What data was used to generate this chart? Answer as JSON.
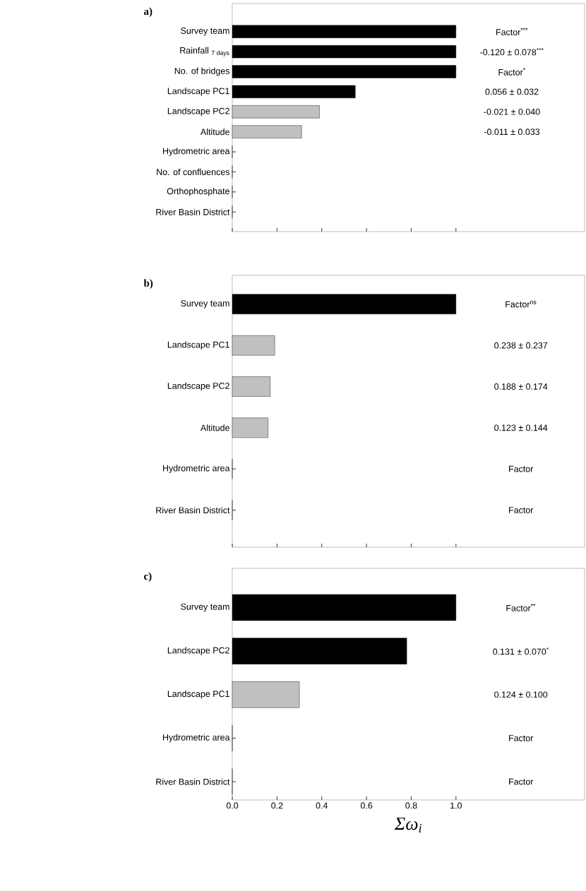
{
  "chart_data": [
    {
      "type": "bar",
      "orientation": "horizontal",
      "title": "a)",
      "categories": [
        "Survey team",
        "Rainfall $_{7 days}$",
        "No. of bridges",
        "Landscape PC1",
        "Landscape PC2",
        "Altitude",
        "Hydrometric area",
        "No. of confluences",
        "Orthophosphate",
        "River Basin District"
      ],
      "values": [
        1.0,
        1.0,
        1.0,
        0.55,
        0.39,
        0.31,
        0,
        0,
        0,
        0
      ],
      "colors": [
        "#000000",
        "#000000",
        "#000000",
        "#000000",
        "#c0c0c0",
        "#c0c0c0",
        "#c0c0c0",
        "#c0c0c0",
        "#c0c0c0",
        "#c0c0c0"
      ],
      "xlim": [
        0,
        1.575
      ],
      "xticks": [
        {
          "value": 0,
          "label": null
        },
        {
          "value": 0.2,
          "label": null
        },
        {
          "value": 0.4,
          "label": null
        },
        {
          "value": 0.6,
          "label": null
        },
        {
          "value": 0.8,
          "label": null
        },
        {
          "value": 1,
          "label": null
        }
      ],
      "tick_labels": "y",
      "annotations": [
        "Factor$^{***}$",
        "-0.120 ± 0.078$^{***}$",
        "Factor$^{*}$",
        "0.056 ± 0.032",
        "-0.021 ± 0.040",
        "-0.011 ± 0.033"
      ]
    },
    {
      "type": "bar",
      "orientation": "horizontal",
      "title": "b)",
      "categories": [
        "Survey team",
        "Landscape PC1",
        "Landscape PC2",
        "Altitude",
        "Hydrometric area",
        "River Basin District"
      ],
      "values": [
        1.0,
        0.19,
        0.17,
        0.16,
        0,
        0
      ],
      "colors": [
        "#000000",
        "#c0c0c0",
        "#c0c0c0",
        "#c0c0c0",
        "#c0c0c0",
        "#c0c0c0"
      ],
      "xlim": [
        0,
        1.575
      ],
      "xticks": [
        {
          "value": 0,
          "label": null
        },
        {
          "value": 0.2,
          "label": null
        },
        {
          "value": 0.4,
          "label": null
        },
        {
          "value": 0.6,
          "label": null
        },
        {
          "value": 0.8,
          "label": null
        },
        {
          "value": 1,
          "label": null
        }
      ],
      "tick_labels": "y",
      "annotations": [
        "Factor$^{ns}$",
        "0.238 ± 0.237",
        "0.188 ± 0.174",
        "0.123 ± 0.144",
        "Factor",
        "Factor"
      ]
    },
    {
      "type": "bar",
      "orientation": "horizontal",
      "title": "c)",
      "xlabel": "Σω$_{i}$",
      "categories": [
        "Survey team",
        "Landscape PC2",
        "Landscape PC1",
        "Hydrometric area",
        "River Basin District"
      ],
      "values": [
        1.0,
        0.78,
        0.3,
        0,
        0
      ],
      "colors": [
        "#000000",
        "#000000",
        "#c0c0c0",
        "#c0c0c0",
        "#c0c0c0"
      ],
      "xlim": [
        0,
        1.575
      ],
      "xticks": [
        {
          "value": 0,
          "label": "0.0"
        },
        0.2,
        0.4,
        0.6,
        0.8,
        {
          "value": 1,
          "label": "1.0"
        }
      ],
      "annotations": [
        "Factor$^{**}$",
        "0.131 ± 0.070$^{*}$",
        "0.124 ± 0.100",
        "Factor",
        "Factor"
      ]
    }
  ]
}
